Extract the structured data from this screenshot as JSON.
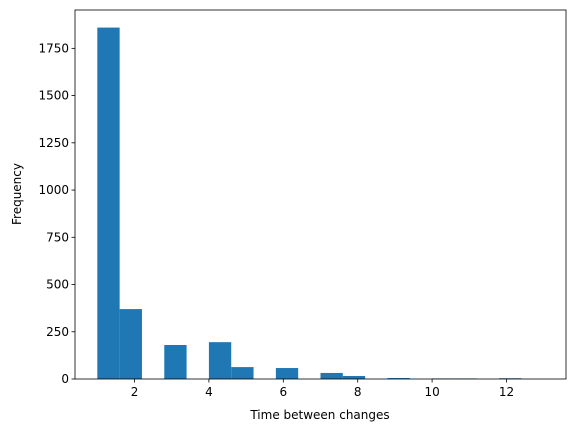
{
  "chart_data": {
    "type": "histogram",
    "xlabel": "Time between changes",
    "ylabel": "Frequency",
    "bins": [
      1,
      1.6,
      2.2,
      2.8,
      3.4,
      4,
      4.6,
      5.2,
      5.8,
      6.4,
      7,
      7.6,
      8.2,
      8.8,
      9.4,
      10,
      10.6,
      11.2,
      11.8,
      12.4,
      13
    ],
    "counts": [
      1860,
      370,
      0,
      180,
      0,
      195,
      63,
      0,
      58,
      0,
      32,
      16,
      0,
      5,
      0,
      3,
      3,
      0,
      4,
      0
    ],
    "color": "#1f77b4",
    "xlim": [
      0.4,
      13.6
    ],
    "xticks": [
      2,
      4,
      6,
      8,
      10,
      12
    ],
    "ylim": [
      0,
      1953
    ],
    "yticks": [
      0,
      250,
      500,
      750,
      1000,
      1250,
      1500,
      1750
    ]
  }
}
